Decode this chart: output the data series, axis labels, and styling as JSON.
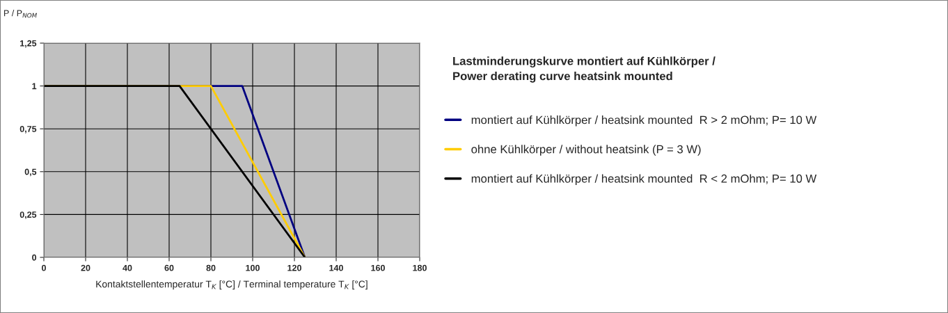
{
  "chart_data": {
    "type": "line",
    "title": "Lastminderungskurve montiert auf Kühlkörper /\nPower derating curve heatsink mounted",
    "xlabel": "Kontaktstellentemperatur T$_{K}$ [°C] / Terminal temperature T$_{K}$ [°C]",
    "ylabel": "P / P$_{NOM}$",
    "series": [
      {
        "name": "montiert auf Kühlkörper / heatsink mounted  R > 2 mOhm; P= 10 W",
        "color": "#000080",
        "x": [
          0,
          95,
          125
        ],
        "values": [
          1,
          1,
          0
        ]
      },
      {
        "name": "ohne Kühlkörper / without heatsink (P = 3 W)",
        "color": "#ffcc00",
        "x": [
          0,
          80,
          125
        ],
        "values": [
          1,
          1,
          0
        ]
      },
      {
        "name": "montiert auf Kühlkörper / heatsink mounted  R < 2 mOhm; P= 10 W",
        "color": "#000000",
        "x": [
          0,
          65,
          125
        ],
        "values": [
          1,
          1,
          0
        ]
      }
    ],
    "xlim": [
      0,
      180
    ],
    "xticks": [
      0,
      20,
      40,
      60,
      80,
      100,
      120,
      140,
      160,
      180
    ],
    "ylim": [
      0,
      1.25
    ],
    "yticks": [
      0,
      {
        "value": 0.25,
        "label": "0,25"
      },
      {
        "value": 0.5,
        "label": "0,5"
      },
      {
        "value": 0.75,
        "label": "0,75"
      },
      1,
      {
        "value": 1.25,
        "label": "1,25"
      }
    ],
    "grid": true,
    "legend": "right",
    "marker": "none",
    "line_style": "solid"
  }
}
